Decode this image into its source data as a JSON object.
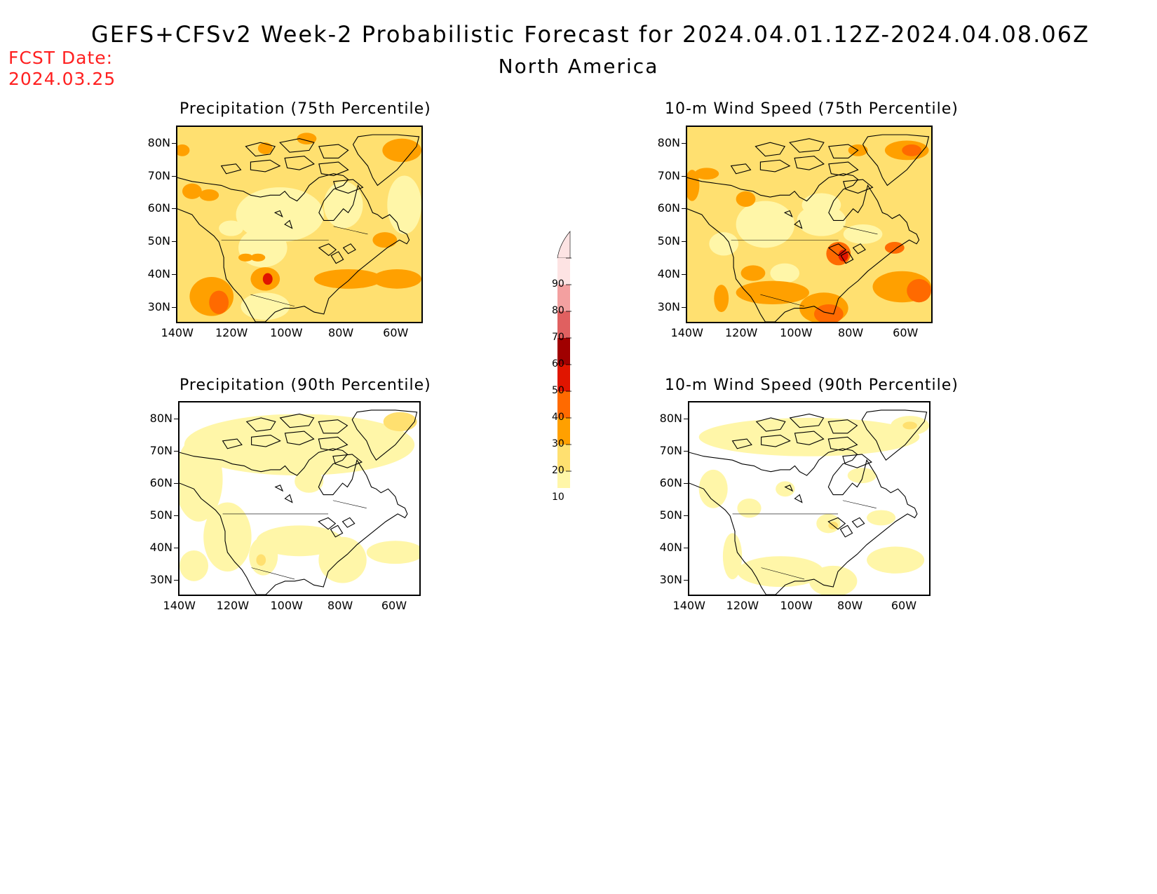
{
  "header": {
    "title": "GEFS+CFSv2 Week-2 Probabilistic Forecast for 2024.04.01.12Z-2024.04.08.06Z",
    "subtitle": "North America",
    "fcst_label": "FCST Date:",
    "fcst_date": "2024.03.25"
  },
  "panels": [
    {
      "id": "precip75",
      "title": "Precipitation (75th Percentile)"
    },
    {
      "id": "wind75",
      "title": "10-m Wind Speed (75th Percentile)"
    },
    {
      "id": "precip90",
      "title": "Precipitation (90th Percentile)"
    },
    {
      "id": "wind90",
      "title": "10-m Wind Speed (90th Percentile)"
    }
  ],
  "lat_ticks": [
    "80N",
    "70N",
    "60N",
    "50N",
    "40N",
    "30N"
  ],
  "lon_ticks": [
    "140W",
    "120W",
    "100W",
    "80W",
    "60W"
  ],
  "colorbar": {
    "labels": [
      "90",
      "80",
      "70",
      "60",
      "50",
      "40",
      "30",
      "20",
      "10"
    ],
    "colors": [
      "#fde3e3",
      "#f3a0a0",
      "#e06060",
      "#a00000",
      "#e01500",
      "#ff6a00",
      "#ffa000",
      "#ffe070",
      "#fff6a8"
    ]
  },
  "palette": {
    "p10": "#fff6a8",
    "p20": "#ffe070",
    "p30": "#ffa000",
    "p40": "#ff6a00",
    "p50": "#e01500",
    "p60": "#a00000"
  }
}
